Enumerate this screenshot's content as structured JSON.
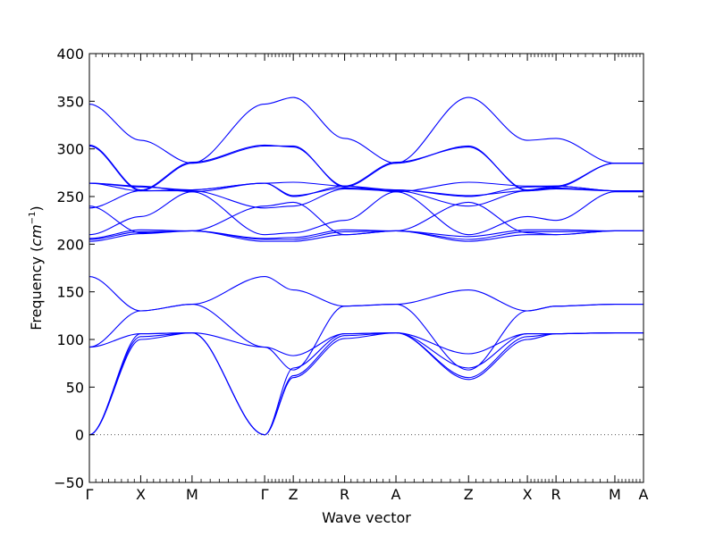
{
  "chart_data": {
    "type": "line",
    "xlabel": "Wave vector",
    "ylabel": "Frequency (cm⁻¹)",
    "ylabel_main": "Frequency (",
    "ylabel_unit": "cm",
    "ylabel_exp": "−1",
    "ylabel_close": ")",
    "ylim": [
      -50,
      400
    ],
    "yticks": [
      -50,
      0,
      50,
      100,
      150,
      200,
      250,
      300,
      350,
      400
    ],
    "grid": false,
    "legend": "none",
    "line_color": "#0000ff",
    "zero_line_color": "#555555",
    "x_segments": [
      {
        "from": "Γ",
        "to": "X",
        "length": 0.5
      },
      {
        "from": "X",
        "to": "M",
        "length": 0.5
      },
      {
        "from": "M",
        "to": "Γ",
        "length": 0.707
      },
      {
        "from": "Γ",
        "to": "Z",
        "length": 0.279
      },
      {
        "from": "Z",
        "to": "R",
        "length": 0.5
      },
      {
        "from": "R",
        "to": "A",
        "length": 0.5
      },
      {
        "from": "A",
        "to": "Z",
        "length": 0.707
      },
      {
        "from": "Z",
        "to": "X",
        "length": 0.573
      },
      {
        "from": "X",
        "to": "R",
        "length": 0.279
      },
      {
        "from": "R",
        "to": "M",
        "length": 0.573
      },
      {
        "from": "M",
        "to": "A",
        "length": 0.279
      }
    ],
    "xtick_labels": [
      "Γ",
      "X",
      "M",
      "Γ",
      "Z",
      "R",
      "A",
      "Z",
      "X",
      "R",
      "M",
      "A"
    ],
    "segment_samples": 8,
    "branches": [
      [
        0,
        100,
        107,
        0,
        60,
        101,
        107,
        58,
        100,
        106,
        107,
        107
      ],
      [
        0,
        103,
        107,
        0,
        62,
        104,
        107,
        60,
        103,
        106,
        107,
        107
      ],
      [
        0,
        106,
        107,
        0,
        70,
        106,
        107,
        70,
        106,
        106,
        107,
        107
      ],
      [
        92,
        106,
        107,
        92,
        83,
        106,
        107,
        85,
        106,
        106,
        107,
        107
      ],
      [
        92,
        130,
        137,
        92,
        68,
        135,
        137,
        68,
        130,
        135,
        137,
        137
      ],
      [
        166,
        130,
        137,
        166,
        152,
        135,
        137,
        152,
        130,
        135,
        137,
        137
      ],
      [
        203,
        211,
        214,
        203,
        203,
        210,
        214,
        203,
        210,
        210,
        214,
        214
      ],
      [
        205,
        213,
        214,
        205,
        205,
        213,
        214,
        205,
        213,
        213,
        214,
        214
      ],
      [
        206,
        215,
        214,
        206,
        207,
        215,
        214,
        208,
        215,
        215,
        214,
        214
      ],
      [
        210,
        229,
        255,
        210,
        212,
        225,
        255,
        210,
        229,
        225,
        255,
        255
      ],
      [
        240,
        212,
        214,
        240,
        244,
        210,
        214,
        244,
        212,
        210,
        214,
        214
      ],
      [
        238,
        256,
        256,
        238,
        240,
        258,
        256,
        240,
        256,
        258,
        256,
        256
      ],
      [
        264,
        256,
        257,
        264,
        251,
        259,
        257,
        251,
        256,
        259,
        256,
        256
      ],
      [
        264,
        260,
        257,
        264,
        250,
        261,
        257,
        250,
        260,
        261,
        256,
        256
      ],
      [
        264,
        261,
        255,
        264,
        265,
        261,
        255,
        265,
        261,
        261,
        256,
        256
      ],
      [
        303,
        256,
        285,
        303,
        303,
        260,
        285,
        303,
        256,
        260,
        285,
        285
      ],
      [
        304,
        257,
        286,
        304,
        302,
        261,
        286,
        302,
        257,
        261,
        285,
        285
      ],
      [
        347,
        309,
        285,
        347,
        354,
        311,
        285,
        354,
        309,
        311,
        285,
        285
      ]
    ]
  }
}
